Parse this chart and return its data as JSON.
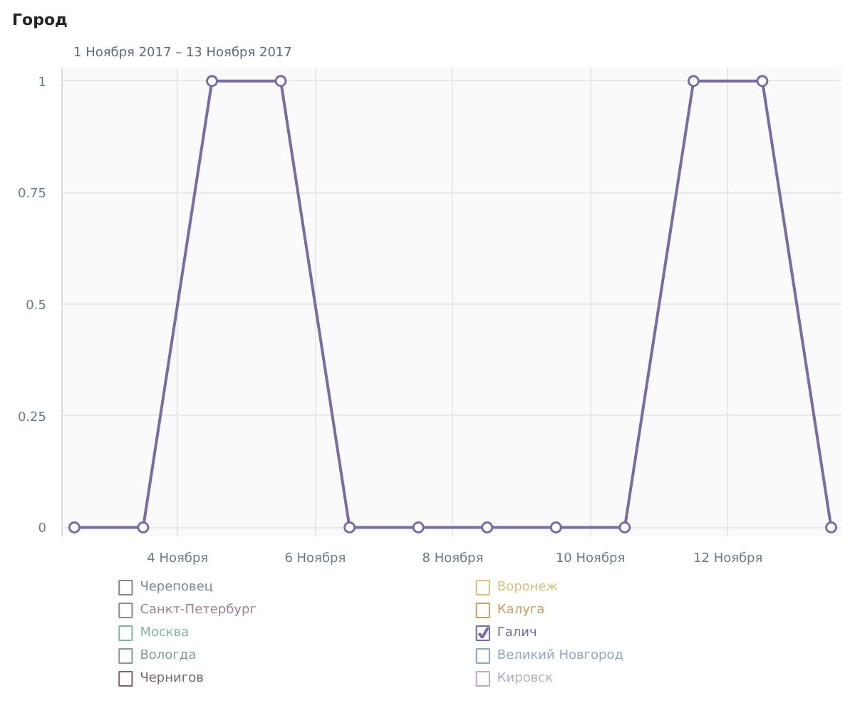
{
  "chart_data": {
    "type": "line",
    "title": "Город",
    "subtitle": "1 Ноября 2017 – 13 Ноября 2017",
    "x": [
      2.5,
      3.5,
      4.5,
      5.5,
      6.5,
      7.5,
      8.5,
      9.5,
      10.5,
      11.5,
      12.5,
      13.5
    ],
    "series": [
      {
        "name": "Череповец",
        "color": "#7a8899",
        "values": [
          null,
          null,
          null,
          null,
          null,
          null,
          null,
          null,
          null,
          null,
          null,
          null
        ]
      },
      {
        "name": "Санкт-Петербург",
        "color": "#a07f8f",
        "values": [
          null,
          null,
          null,
          null,
          null,
          null,
          null,
          null,
          null,
          null,
          null,
          null
        ]
      },
      {
        "name": "Москва",
        "color": "#7fb89a",
        "values": [
          null,
          null,
          null,
          null,
          null,
          null,
          null,
          null,
          null,
          null,
          null,
          null
        ]
      },
      {
        "name": "Вологда",
        "color": "#7fa08f",
        "values": [
          null,
          null,
          null,
          null,
          null,
          null,
          null,
          null,
          null,
          null,
          null,
          null
        ]
      },
      {
        "name": "Чернигов",
        "color": "#806262",
        "values": [
          null,
          null,
          null,
          null,
          null,
          null,
          null,
          null,
          null,
          null,
          null,
          null
        ]
      },
      {
        "name": "Воронеж",
        "color": "#d8c07f",
        "values": [
          null,
          null,
          null,
          null,
          null,
          null,
          null,
          null,
          null,
          null,
          null,
          null
        ]
      },
      {
        "name": "Калуга",
        "color": "#c8a062",
        "values": [
          null,
          null,
          null,
          null,
          null,
          null,
          null,
          null,
          null,
          null,
          null,
          null
        ]
      },
      {
        "name": "Галич",
        "color": "#7b6aa8",
        "values": [
          0,
          0,
          1,
          1,
          0,
          0,
          0,
          0,
          0,
          1,
          1,
          0
        ]
      },
      {
        "name": "Великий Новгород",
        "color": "#8fa7c0",
        "values": [
          null,
          null,
          null,
          null,
          null,
          null,
          null,
          null,
          null,
          null,
          null,
          null
        ]
      },
      {
        "name": "Кировск",
        "color": "#c0a8c8",
        "values": [
          null,
          null,
          null,
          null,
          null,
          null,
          null,
          null,
          null,
          null,
          null,
          null
        ]
      }
    ],
    "xlim": [
      2.32,
      13.65
    ],
    "xticks": [
      {
        "value": 4,
        "label": "4 Ноября"
      },
      {
        "value": 6,
        "label": "6 Ноября"
      },
      {
        "value": 8,
        "label": "8 Ноября"
      },
      {
        "value": 10,
        "label": "10 Ноября"
      },
      {
        "value": 12,
        "label": "12 Ноября"
      }
    ],
    "ylim": [
      -0.02,
      1.03
    ],
    "yticks": [
      0,
      {
        "value": 0.25,
        "label": "0.25"
      },
      {
        "value": 0.5,
        "label": "0.5"
      },
      {
        "value": 0.75,
        "label": "0.75"
      },
      1
    ],
    "grid": true,
    "marker": "circle",
    "line_style": "solid",
    "legend": "bottom"
  }
}
